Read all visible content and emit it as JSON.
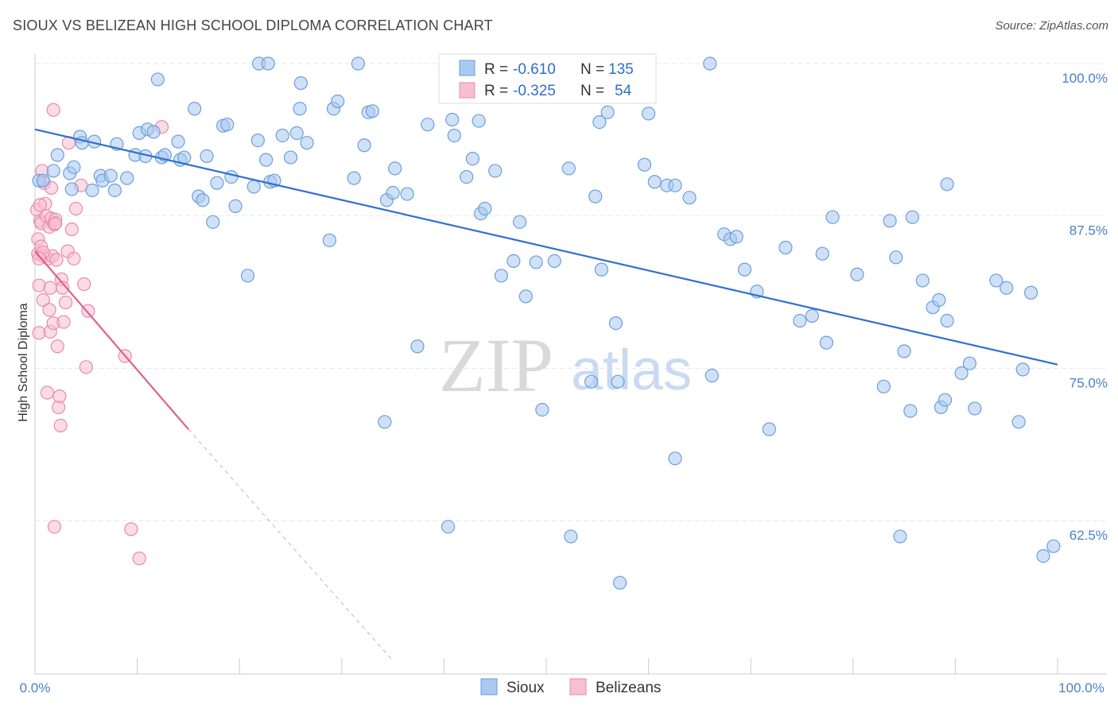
{
  "header": {
    "title": "SIOUX VS BELIZEAN HIGH SCHOOL DIPLOMA CORRELATION CHART",
    "source": "Source: ZipAtlas.com"
  },
  "watermark": {
    "zip": "ZIP",
    "atlas": "atlas"
  },
  "legend_top": {
    "rows": [
      {
        "r_label": "R =",
        "r_value": "-0.610",
        "n_label": "N =",
        "n_value": "135"
      },
      {
        "r_label": "R =",
        "r_value": "-0.325",
        "n_label": "N =",
        "n_value": "54"
      }
    ]
  },
  "legend_bottom": {
    "series1": "Sioux",
    "series2": "Belizeans"
  },
  "colors": {
    "sioux_fill": "#a9c9f0",
    "sioux_stroke": "#6a9fdc",
    "sioux_line": "#2f6fd0",
    "beliz_fill": "#f7bfd2",
    "beliz_stroke": "#e88aac",
    "beliz_line": "#e0608c",
    "grid": "#e6e6e6",
    "tick": "#4a7fc8"
  },
  "chart_data": {
    "type": "scatter",
    "title": "SIOUX VS BELIZEAN HIGH SCHOOL DIPLOMA CORRELATION CHART",
    "xlabel": "",
    "ylabel": "High School Diploma",
    "xlim": [
      0,
      100
    ],
    "ylim": [
      51,
      100
    ],
    "x_tick_labels": [
      "0.0%",
      "100.0%"
    ],
    "y_ticks": [
      62.5,
      75.0,
      87.5,
      100.0
    ],
    "y_tick_labels": [
      "62.5%",
      "75.0%",
      "87.5%",
      "100.0%"
    ],
    "grid": true,
    "series": [
      {
        "name": "Sioux",
        "regression": {
          "x": [
            0,
            100
          ],
          "y": [
            94.6,
            75.3
          ]
        },
        "points": [
          [
            0.4,
            90.4
          ],
          [
            0.8,
            90.4
          ],
          [
            1.8,
            91.2
          ],
          [
            2.2,
            92.5
          ],
          [
            3.4,
            91.0
          ],
          [
            3.6,
            89.7
          ],
          [
            3.8,
            91.5
          ],
          [
            4.4,
            94.0
          ],
          [
            4.6,
            93.5
          ],
          [
            5.6,
            89.6
          ],
          [
            5.8,
            93.6
          ],
          [
            6.4,
            90.8
          ],
          [
            6.6,
            90.4
          ],
          [
            7.4,
            90.8
          ],
          [
            7.8,
            89.6
          ],
          [
            8.0,
            93.4
          ],
          [
            9.0,
            90.6
          ],
          [
            9.8,
            92.5
          ],
          [
            10.2,
            94.3
          ],
          [
            10.8,
            92.4
          ],
          [
            11.0,
            94.6
          ],
          [
            11.6,
            94.4
          ],
          [
            12.0,
            98.7
          ],
          [
            12.4,
            92.3
          ],
          [
            12.7,
            92.5
          ],
          [
            14.0,
            93.6
          ],
          [
            14.2,
            92.1
          ],
          [
            14.6,
            92.3
          ],
          [
            15.6,
            96.3
          ],
          [
            16.0,
            89.1
          ],
          [
            16.4,
            88.8
          ],
          [
            16.8,
            92.4
          ],
          [
            17.4,
            87.0
          ],
          [
            17.8,
            90.2
          ],
          [
            18.4,
            94.9
          ],
          [
            18.8,
            95.0
          ],
          [
            19.2,
            90.7
          ],
          [
            19.6,
            88.3
          ],
          [
            20.8,
            82.6
          ],
          [
            21.4,
            89.9
          ],
          [
            21.8,
            93.7
          ],
          [
            21.9,
            100.0
          ],
          [
            22.6,
            92.1
          ],
          [
            23.0,
            90.3
          ],
          [
            23.4,
            90.4
          ],
          [
            24.2,
            94.1
          ],
          [
            25.0,
            92.3
          ],
          [
            25.6,
            94.3
          ],
          [
            25.9,
            96.3
          ],
          [
            26.0,
            98.4
          ],
          [
            26.6,
            93.5
          ],
          [
            28.8,
            85.5
          ],
          [
            29.2,
            96.3
          ],
          [
            29.6,
            96.9
          ],
          [
            31.2,
            90.6
          ],
          [
            31.6,
            100.0
          ],
          [
            32.2,
            93.3
          ],
          [
            32.6,
            96.0
          ],
          [
            33.0,
            96.1
          ],
          [
            34.4,
            88.8
          ],
          [
            35.0,
            89.4
          ],
          [
            35.2,
            91.4
          ],
          [
            37.4,
            76.8
          ],
          [
            34.2,
            70.6
          ],
          [
            40.4,
            62.0
          ],
          [
            40.8,
            95.4
          ],
          [
            41.0,
            94.1
          ],
          [
            42.2,
            90.7
          ],
          [
            42.8,
            92.2
          ],
          [
            43.4,
            95.3
          ],
          [
            43.6,
            87.7
          ],
          [
            44.0,
            88.1
          ],
          [
            45.6,
            82.6
          ],
          [
            46.0,
            100.0
          ],
          [
            46.8,
            83.8
          ],
          [
            47.4,
            87.0
          ],
          [
            48.0,
            80.9
          ],
          [
            49.0,
            83.7
          ],
          [
            49.6,
            71.6
          ],
          [
            50.8,
            83.8
          ],
          [
            52.2,
            91.4
          ],
          [
            54.4,
            73.9
          ],
          [
            54.8,
            89.1
          ],
          [
            55.4,
            83.1
          ],
          [
            56.0,
            96.0
          ],
          [
            56.8,
            78.7
          ],
          [
            57.0,
            73.9
          ],
          [
            59.6,
            91.7
          ],
          [
            60.6,
            90.3
          ],
          [
            61.8,
            90.0
          ],
          [
            62.6,
            67.6
          ],
          [
            62.6,
            90.0
          ],
          [
            64.0,
            89.0
          ],
          [
            66.0,
            100.0
          ],
          [
            66.2,
            74.4
          ],
          [
            67.4,
            86.0
          ],
          [
            68.0,
            85.6
          ],
          [
            68.6,
            85.8
          ],
          [
            69.4,
            83.1
          ],
          [
            70.6,
            81.3
          ],
          [
            71.8,
            70.0
          ],
          [
            73.4,
            84.9
          ],
          [
            74.8,
            78.9
          ],
          [
            76.0,
            79.3
          ],
          [
            77.0,
            84.4
          ],
          [
            77.4,
            77.1
          ],
          [
            78.0,
            87.4
          ],
          [
            80.4,
            82.7
          ],
          [
            83.0,
            73.5
          ],
          [
            83.6,
            87.1
          ],
          [
            84.2,
            84.1
          ],
          [
            84.6,
            61.2
          ],
          [
            85.0,
            76.4
          ],
          [
            85.6,
            71.5
          ],
          [
            85.8,
            87.4
          ],
          [
            86.8,
            82.2
          ],
          [
            87.8,
            80.0
          ],
          [
            88.4,
            80.6
          ],
          [
            88.6,
            71.8
          ],
          [
            89.0,
            72.4
          ],
          [
            89.2,
            78.9
          ],
          [
            89.2,
            90.1
          ],
          [
            90.6,
            74.6
          ],
          [
            91.4,
            75.4
          ],
          [
            91.9,
            71.7
          ],
          [
            94.0,
            82.2
          ],
          [
            95.0,
            81.6
          ],
          [
            96.2,
            70.6
          ],
          [
            96.6,
            74.9
          ],
          [
            97.4,
            81.2
          ],
          [
            98.6,
            59.6
          ],
          [
            99.6,
            60.4
          ],
          [
            57.2,
            57.4
          ],
          [
            52.4,
            61.2
          ],
          [
            55.2,
            95.2
          ],
          [
            60.0,
            95.9
          ],
          [
            36.4,
            89.3
          ],
          [
            38.4,
            95.0
          ],
          [
            45.0,
            91.2
          ],
          [
            22.8,
            100.0
          ]
        ]
      },
      {
        "name": "Belizeans",
        "regression": {
          "x": [
            0,
            15
          ],
          "y": [
            84.6,
            70.0
          ]
        },
        "regression_dashed": {
          "x": [
            15,
            35
          ],
          "y": [
            70.0,
            51.0
          ]
        },
        "points": [
          [
            0.2,
            88.0
          ],
          [
            0.3,
            85.6
          ],
          [
            0.3,
            84.4
          ],
          [
            0.4,
            81.8
          ],
          [
            0.4,
            77.9
          ],
          [
            0.5,
            87.1
          ],
          [
            0.6,
            85.0
          ],
          [
            0.6,
            86.9
          ],
          [
            0.7,
            91.2
          ],
          [
            0.8,
            80.6
          ],
          [
            0.8,
            84.2
          ],
          [
            0.9,
            90.2
          ],
          [
            1.0,
            88.5
          ],
          [
            1.1,
            87.5
          ],
          [
            1.2,
            73.0
          ],
          [
            1.3,
            84.0
          ],
          [
            1.4,
            79.8
          ],
          [
            1.4,
            86.6
          ],
          [
            1.5,
            78.0
          ],
          [
            1.5,
            81.6
          ],
          [
            1.6,
            87.3
          ],
          [
            1.6,
            89.8
          ],
          [
            1.7,
            84.2
          ],
          [
            1.8,
            78.7
          ],
          [
            1.8,
            96.2
          ],
          [
            1.9,
            62.0
          ],
          [
            2.0,
            87.2
          ],
          [
            2.1,
            83.9
          ],
          [
            2.2,
            76.8
          ],
          [
            2.3,
            71.8
          ],
          [
            2.4,
            72.7
          ],
          [
            2.5,
            70.3
          ],
          [
            2.6,
            82.3
          ],
          [
            2.8,
            78.8
          ],
          [
            3.0,
            80.4
          ],
          [
            3.2,
            84.6
          ],
          [
            3.3,
            93.5
          ],
          [
            3.6,
            86.4
          ],
          [
            3.8,
            84.0
          ],
          [
            4.0,
            88.1
          ],
          [
            4.5,
            90.0
          ],
          [
            4.8,
            81.9
          ],
          [
            5.0,
            75.1
          ],
          [
            5.2,
            79.7
          ],
          [
            2.7,
            81.6
          ],
          [
            0.5,
            88.4
          ],
          [
            1.9,
            86.8
          ],
          [
            2.0,
            86.9
          ],
          [
            0.8,
            84.5
          ],
          [
            0.4,
            84.0
          ],
          [
            8.8,
            76.0
          ],
          [
            9.4,
            61.8
          ],
          [
            10.2,
            59.4
          ],
          [
            12.4,
            94.8
          ]
        ]
      }
    ]
  }
}
